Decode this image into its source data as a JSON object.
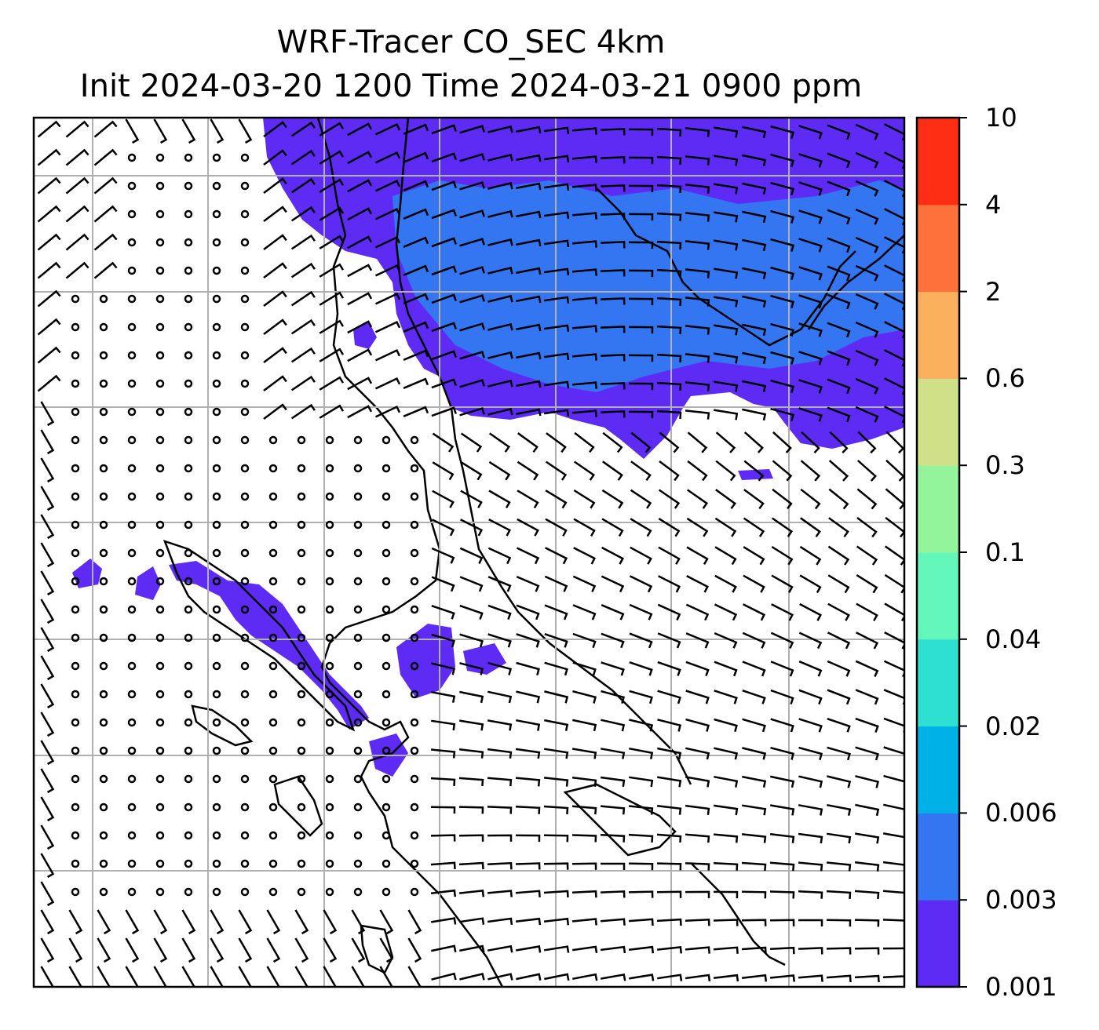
{
  "title": {
    "line1": "WRF-Tracer CO_SEC 4km",
    "line2": "Init 2024-03-20 1200 Time 2024-03-21 0900 ppm"
  },
  "colorbar": {
    "levels": [
      "0.001",
      "0.003",
      "0.006",
      "0.02",
      "0.04",
      "0.1",
      "0.3",
      "0.6",
      "2",
      "4",
      "10"
    ],
    "colors": [
      "#5e2bf5",
      "#3476f2",
      "#00b1e8",
      "#2ee0d1",
      "#64f7bb",
      "#93f49c",
      "#cfe088",
      "#fbb05d",
      "#fe713b",
      "#fd2e14"
    ]
  },
  "map": {
    "plume_color": "#5e2bf5",
    "plume_dense_color": "#3476f2",
    "barb_color": "#000000",
    "grid_color": "#b0b0b0"
  }
}
